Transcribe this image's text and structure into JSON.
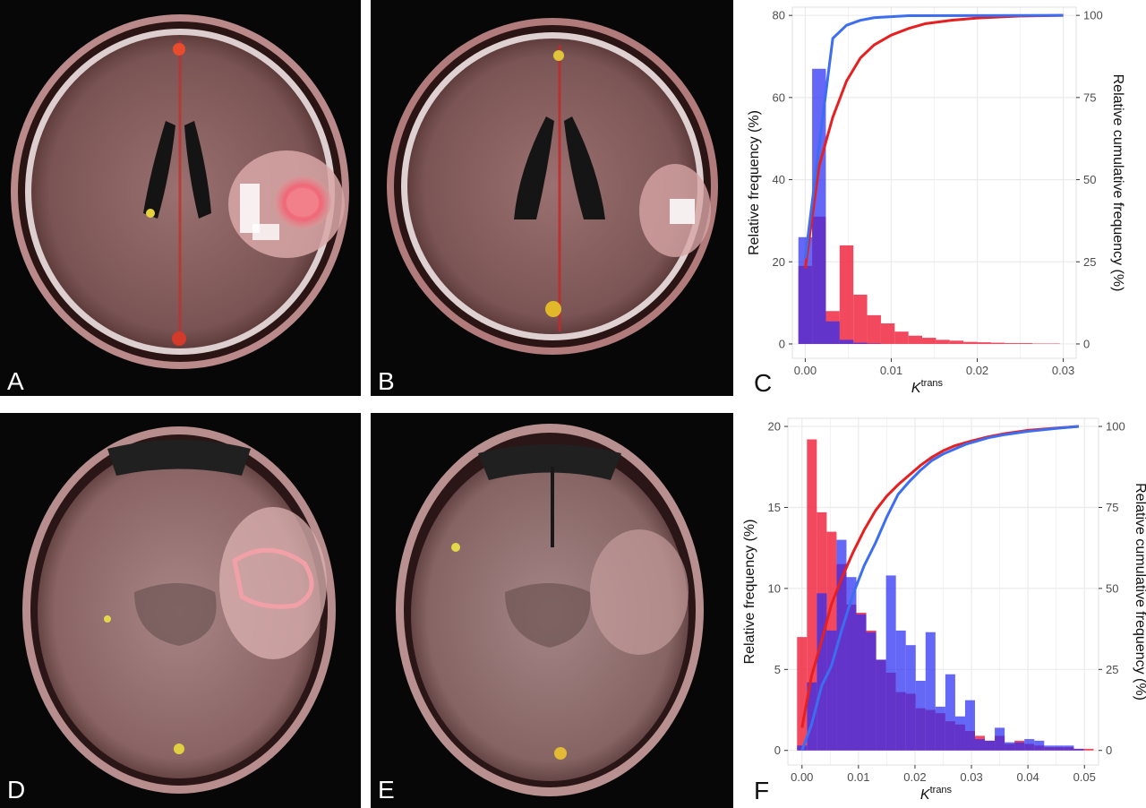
{
  "figure": {
    "panels": [
      {
        "letter": "A"
      },
      {
        "letter": "B"
      },
      {
        "letter": "C"
      },
      {
        "letter": "D"
      },
      {
        "letter": "E"
      },
      {
        "letter": "F"
      }
    ]
  },
  "colors": {
    "red_series": "#f0213a",
    "blue_series": "#2a2cf2",
    "red_curve": "#e62020",
    "blue_curve": "#3d6df0",
    "grid": "#ebebeb",
    "axis_text": "#4d4d4d"
  },
  "chart_data": [
    {
      "type": "bar",
      "panel": "C",
      "xlabel_main": "K",
      "xlabel_sup": "trans",
      "ylabel_left": "Relative frequency (%)",
      "ylabel_right": "Relative cumulative frequency (%)",
      "xlim": [
        -0.0015,
        0.0315
      ],
      "ylim_left": [
        -3.5,
        82
      ],
      "ylim_right": [
        0,
        100
      ],
      "xticks": [
        0.0,
        0.01,
        0.02,
        0.03
      ],
      "xtick_labels": [
        "0.00",
        "0.01",
        "0.02",
        "0.03"
      ],
      "yticks_left": [
        0,
        20,
        40,
        60,
        80
      ],
      "yticks_right": [
        0,
        25,
        50,
        75,
        100
      ],
      "bin_width": 0.0016,
      "series": [
        {
          "color": "red",
          "bin_centers": [
            0.0,
            0.0016,
            0.0032,
            0.0048,
            0.0064,
            0.008,
            0.0096,
            0.0112,
            0.0128,
            0.0144,
            0.016,
            0.0176,
            0.0192,
            0.0208,
            0.0224,
            0.024,
            0.0256,
            0.0272,
            0.0288
          ],
          "values": [
            19,
            31,
            8,
            24,
            12,
            7,
            5,
            3,
            2,
            1.5,
            1,
            0.8,
            0.5,
            0.4,
            0.3,
            0.2,
            0.2,
            0.1,
            0.1
          ],
          "cumulative_x": [
            0.0,
            0.0016,
            0.0032,
            0.0048,
            0.0064,
            0.008,
            0.01,
            0.012,
            0.014,
            0.017,
            0.02,
            0.025,
            0.03
          ],
          "cumulative_y": [
            23,
            54,
            69,
            80,
            87,
            91,
            94,
            96,
            97.5,
            98.5,
            99.2,
            99.8,
            100
          ]
        },
        {
          "color": "blue",
          "bin_centers": [
            0.0,
            0.0016,
            0.0032,
            0.0048,
            0.0064,
            0.008
          ],
          "values": [
            26,
            67,
            5.5,
            1,
            0.3,
            0.1
          ],
          "cumulative_x": [
            0.0,
            0.0016,
            0.0032,
            0.0048,
            0.0064,
            0.008,
            0.012,
            0.03
          ],
          "cumulative_y": [
            26,
            60,
            93,
            97,
            98.5,
            99.3,
            99.9,
            100
          ]
        }
      ]
    },
    {
      "type": "bar",
      "panel": "F",
      "xlabel_main": "K",
      "xlabel_sup": "trans",
      "ylabel_left": "Relative frequency (%)",
      "ylabel_right": "Relative cumulative frequency (%)",
      "xlim": [
        -0.0025,
        0.0525
      ],
      "ylim_left": [
        -0.9,
        20.5
      ],
      "ylim_right": [
        0,
        100
      ],
      "xticks": [
        0.0,
        0.01,
        0.02,
        0.03,
        0.04,
        0.05
      ],
      "xtick_labels": [
        "0.00",
        "0.01",
        "0.02",
        "0.03",
        "0.04",
        "0.05"
      ],
      "yticks_left": [
        0,
        5,
        10,
        15,
        20
      ],
      "yticks_right": [
        0,
        25,
        50,
        75,
        100
      ],
      "bin_width": 0.00175,
      "series": [
        {
          "color": "red",
          "bin_centers": [
            0.0,
            0.00175,
            0.0035,
            0.00525,
            0.007,
            0.00875,
            0.0105,
            0.01225,
            0.014,
            0.01575,
            0.0175,
            0.01925,
            0.021,
            0.02275,
            0.0245,
            0.02625,
            0.028,
            0.02975,
            0.0315,
            0.03325,
            0.035,
            0.03675,
            0.0385,
            0.04025,
            0.042,
            0.04375,
            0.0455,
            0.04725,
            0.049,
            0.05075
          ],
          "values": [
            7,
            19.2,
            14.7,
            13.5,
            11.5,
            9,
            8.5,
            7.4,
            5.6,
            4.8,
            3.6,
            3.5,
            2.6,
            2.5,
            2.3,
            1.8,
            1.6,
            1.2,
            0.9,
            0.6,
            0.9,
            0.4,
            0.6,
            0.4,
            0.3,
            0.2,
            0.2,
            0.2,
            0.1,
            0.1
          ],
          "cumulative_x": [
            0.0,
            0.0017,
            0.0035,
            0.0052,
            0.007,
            0.009,
            0.011,
            0.013,
            0.015,
            0.017,
            0.019,
            0.021,
            0.023,
            0.025,
            0.027,
            0.03,
            0.033,
            0.036,
            0.04,
            0.045,
            0.049
          ],
          "cumulative_y": [
            7,
            23,
            34,
            45,
            53,
            61,
            68,
            74,
            78.5,
            82,
            85,
            88,
            90.5,
            92.5,
            94,
            95.5,
            96.8,
            97.8,
            98.8,
            99.5,
            100
          ]
        },
        {
          "color": "blue",
          "bin_centers": [
            0.0,
            0.00175,
            0.0035,
            0.00525,
            0.007,
            0.00875,
            0.0105,
            0.01225,
            0.014,
            0.01575,
            0.0175,
            0.01925,
            0.021,
            0.02275,
            0.0245,
            0.02625,
            0.028,
            0.02975,
            0.0315,
            0.03325,
            0.035,
            0.03675,
            0.0385,
            0.04025,
            0.042,
            0.04375,
            0.0455,
            0.04725,
            0.049
          ],
          "values": [
            0.3,
            4.2,
            9.7,
            7.4,
            13,
            10.7,
            8.4,
            7.3,
            5.6,
            10.8,
            7.4,
            6.5,
            4.3,
            7.3,
            2.7,
            4.7,
            2.1,
            3.1,
            0.7,
            0.6,
            1.4,
            0.5,
            0.5,
            0.7,
            0.6,
            0.3,
            0.3,
            0.3,
            0.1
          ],
          "cumulative_x": [
            0.0,
            0.0017,
            0.0035,
            0.0052,
            0.007,
            0.009,
            0.011,
            0.013,
            0.015,
            0.017,
            0.019,
            0.021,
            0.023,
            0.025,
            0.027,
            0.029,
            0.031,
            0.033,
            0.036,
            0.04,
            0.045,
            0.049
          ],
          "cumulative_y": [
            0,
            8,
            20,
            26,
            37,
            48,
            57,
            64,
            72,
            79,
            83,
            86.5,
            89.5,
            91.5,
            93,
            94.5,
            95.5,
            96.5,
            97.5,
            98.5,
            99.4,
            100
          ]
        }
      ]
    }
  ]
}
